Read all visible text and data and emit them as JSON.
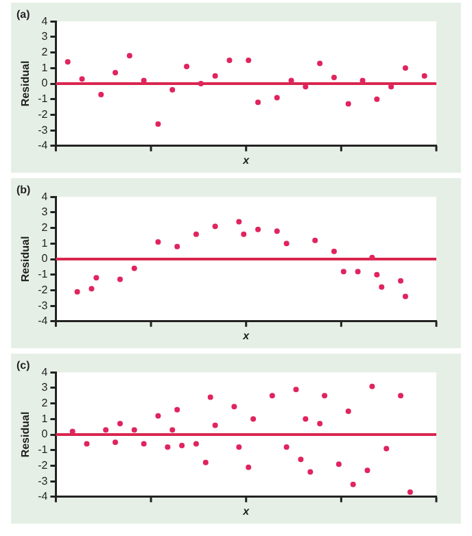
{
  "chart_data": [
    {
      "type": "scatter",
      "title": "(a)",
      "xlabel": "x",
      "ylabel": "Residual",
      "categories": [
        null,
        null,
        null,
        null,
        null,
        null,
        null,
        null,
        null,
        null,
        null,
        null,
        null,
        null,
        null,
        null,
        null,
        null,
        null,
        null,
        null,
        null,
        null,
        null,
        null,
        null,
        null,
        null,
        null,
        null,
        null,
        null,
        null,
        null,
        null,
        null,
        null,
        null,
        null,
        null,
        null,
        null,
        null,
        null,
        null,
        null,
        null,
        null,
        null,
        null,
        null,
        null,
        null,
        null,
        null,
        null,
        null,
        null,
        null,
        null,
        null,
        null,
        null,
        null,
        null,
        null,
        null,
        null,
        null,
        null,
        null,
        null,
        null,
        null,
        null,
        null,
        null,
        null,
        null,
        null
      ],
      "ylim": [
        -4,
        4
      ],
      "yticks": [
        -4,
        -3,
        -2,
        -1,
        0,
        1,
        2,
        3,
        4
      ],
      "tick_labels": "y",
      "grid": false,
      "legend": false,
      "marker": "circle",
      "ref_lines": [
        {
          "axis": "y",
          "value": 0,
          "color": "#d9254f"
        }
      ],
      "series": [
        {
          "color": "#e0245e",
          "values": [
            null,
            null,
            1.4,
            null,
            null,
            0.3,
            null,
            null,
            null,
            -0.7,
            null,
            null,
            0.7,
            null,
            null,
            1.8,
            null,
            null,
            0.2,
            null,
            null,
            -2.6,
            null,
            null,
            -0.4,
            null,
            null,
            1.1,
            null,
            null,
            0,
            null,
            null,
            0.5,
            null,
            null,
            1.5,
            null,
            null,
            null,
            1.5,
            null,
            -1.2,
            null,
            null,
            null,
            -0.9,
            null,
            null,
            0.2,
            null,
            null,
            -0.2,
            null,
            null,
            1.3,
            null,
            null,
            0.4,
            null,
            null,
            -1.3,
            null,
            null,
            0.2,
            null,
            null,
            -1.0,
            null,
            null,
            -0.2,
            null,
            null,
            1.0,
            null,
            null,
            null,
            0.5,
            null,
            null
          ]
        }
      ]
    },
    {
      "type": "scatter",
      "title": "(b)",
      "xlabel": "x",
      "ylabel": "Residual",
      "categories": [
        null,
        null,
        null,
        null,
        null,
        null,
        null,
        null,
        null,
        null,
        null,
        null,
        null,
        null,
        null,
        null,
        null,
        null,
        null,
        null,
        null,
        null,
        null,
        null,
        null,
        null,
        null,
        null,
        null,
        null,
        null,
        null,
        null,
        null,
        null,
        null,
        null,
        null,
        null,
        null,
        null,
        null,
        null,
        null,
        null,
        null,
        null,
        null,
        null,
        null,
        null,
        null,
        null,
        null,
        null,
        null,
        null,
        null,
        null,
        null,
        null,
        null,
        null,
        null,
        null,
        null,
        null,
        null,
        null,
        null,
        null,
        null,
        null,
        null,
        null,
        null,
        null,
        null,
        null,
        null
      ],
      "ylim": [
        -4,
        4
      ],
      "yticks": [
        -4,
        -3,
        -2,
        -1,
        0,
        1,
        2,
        3,
        4
      ],
      "tick_labels": "y",
      "grid": false,
      "legend": false,
      "marker": "circle",
      "ref_lines": [
        {
          "axis": "y",
          "value": 0,
          "color": "#d9254f"
        }
      ],
      "series": [
        {
          "color": "#e0245e",
          "values": [
            null,
            null,
            null,
            null,
            -2.1,
            null,
            null,
            -1.9,
            -1.2,
            null,
            null,
            null,
            null,
            -1.3,
            null,
            null,
            -0.6,
            null,
            null,
            null,
            null,
            1.1,
            null,
            null,
            null,
            0.8,
            null,
            null,
            null,
            1.6,
            null,
            null,
            null,
            2.1,
            null,
            null,
            null,
            null,
            2.4,
            1.6,
            null,
            null,
            1.9,
            null,
            null,
            null,
            1.8,
            null,
            1.0,
            null,
            null,
            null,
            null,
            null,
            1.2,
            null,
            null,
            null,
            0.5,
            null,
            -0.8,
            null,
            null,
            -0.8,
            null,
            null,
            0.1,
            -1.0,
            -1.8,
            null,
            null,
            null,
            -1.4,
            -2.4,
            null,
            null,
            null,
            null,
            null,
            null
          ]
        }
      ]
    },
    {
      "type": "scatter",
      "title": "(c)",
      "xlabel": "x",
      "ylabel": "Residual",
      "categories": [
        null,
        null,
        null,
        null,
        null,
        null,
        null,
        null,
        null,
        null,
        null,
        null,
        null,
        null,
        null,
        null,
        null,
        null,
        null,
        null,
        null,
        null,
        null,
        null,
        null,
        null,
        null,
        null,
        null,
        null,
        null,
        null,
        null,
        null,
        null,
        null,
        null,
        null,
        null,
        null,
        null,
        null,
        null,
        null,
        null,
        null,
        null,
        null,
        null,
        null,
        null,
        null,
        null,
        null,
        null,
        null,
        null,
        null,
        null,
        null,
        null,
        null,
        null,
        null,
        null,
        null,
        null,
        null,
        null,
        null,
        null,
        null,
        null,
        null,
        null,
        null,
        null,
        null,
        null,
        null
      ],
      "ylim": [
        -4,
        4
      ],
      "yticks": [
        -4,
        -3,
        -2,
        -1,
        0,
        1,
        2,
        3,
        4
      ],
      "tick_labels": "y",
      "grid": false,
      "legend": false,
      "marker": "circle",
      "ref_lines": [
        {
          "axis": "y",
          "value": 0,
          "color": "#d9254f"
        }
      ],
      "series": [
        {
          "color": "#e0245e",
          "values": [
            null,
            null,
            null,
            0.2,
            null,
            null,
            -0.6,
            null,
            null,
            null,
            0.3,
            null,
            -0.5,
            0.7,
            null,
            null,
            0.3,
            null,
            -0.6,
            null,
            null,
            1.2,
            null,
            -0.8,
            0.3,
            1.6,
            -0.7,
            null,
            null,
            -0.6,
            null,
            -1.8,
            2.4,
            0.6,
            null,
            null,
            null,
            1.8,
            -0.8,
            null,
            -2.1,
            1.0,
            null,
            null,
            null,
            2.5,
            null,
            null,
            -0.8,
            null,
            2.9,
            -1.6,
            1.0,
            -2.4,
            null,
            0.7,
            2.5,
            null,
            null,
            -1.9,
            null,
            1.5,
            -3.2,
            null,
            null,
            -2.3,
            3.1,
            null,
            null,
            -0.9,
            null,
            null,
            2.5,
            null,
            -3.7,
            null,
            null,
            null,
            null,
            null
          ]
        }
      ]
    }
  ]
}
